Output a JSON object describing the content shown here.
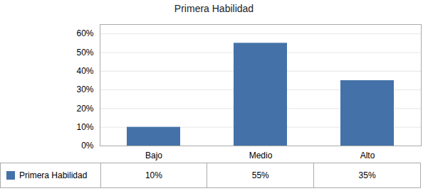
{
  "chart_data": {
    "type": "bar",
    "title": "Primera Habilidad",
    "categories": [
      "Bajo",
      "Medio",
      "Alto"
    ],
    "series": [
      {
        "name": "Primera Habilidad",
        "color": "#4472A8",
        "values": [
          0.1,
          0.55,
          0.35
        ],
        "value_labels": [
          "10%",
          "55%",
          "35%"
        ]
      }
    ],
    "ylim": [
      0,
      0.65
    ],
    "yticks": [
      {
        "value": 0,
        "label": "0%"
      },
      {
        "value": 0.1,
        "label": "10%"
      },
      {
        "value": 0.2,
        "label": "20%"
      },
      {
        "value": 0.3,
        "label": "30%"
      },
      {
        "value": 0.4,
        "label": "40%"
      },
      {
        "value": 0.5,
        "label": "50%"
      },
      {
        "value": 0.6,
        "label": "60%"
      }
    ],
    "grid": true,
    "legend": "bottom",
    "data_labels": true
  }
}
